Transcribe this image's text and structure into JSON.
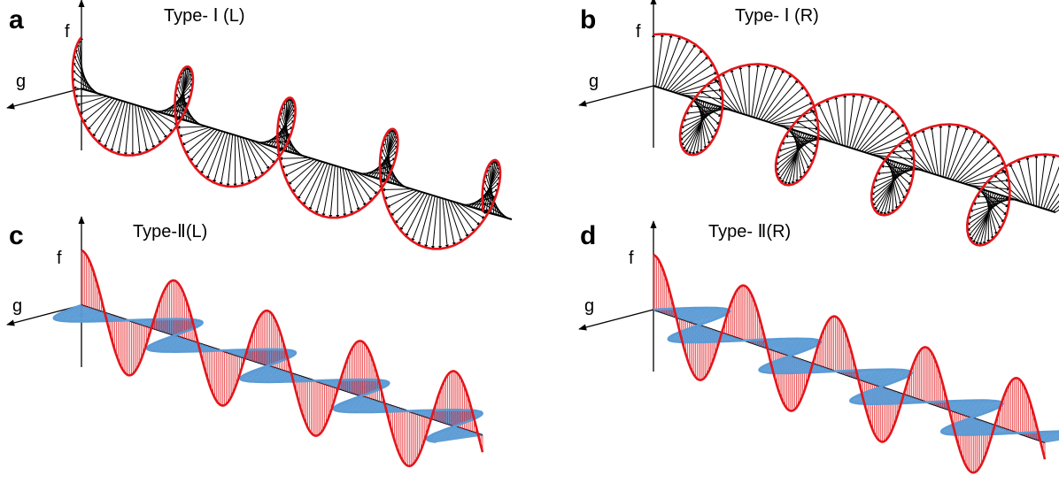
{
  "panels": [
    {
      "label": "a",
      "title": "Type- Ⅰ (L)",
      "axis_f": "f",
      "axis_g": "g"
    },
    {
      "label": "b",
      "title": "Type- Ⅰ (R)",
      "axis_f": "f",
      "axis_g": "g"
    },
    {
      "label": "c",
      "title": "Type-Ⅱ(L)",
      "axis_f": "f",
      "axis_g": "g"
    },
    {
      "label": "d",
      "title": "Type- Ⅱ(R)",
      "axis_f": "f",
      "axis_g": "g"
    }
  ]
}
